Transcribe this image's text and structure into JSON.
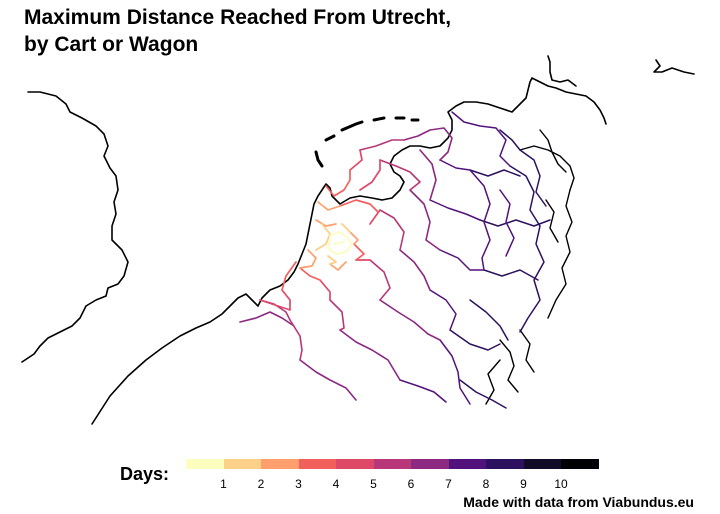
{
  "title": {
    "line1": "Maximum Distance Reached From Utrecht,",
    "line2": "by Cart or Wagon"
  },
  "legend": {
    "title": "Days:",
    "labels": [
      "1",
      "2",
      "3",
      "4",
      "5",
      "6",
      "7",
      "8",
      "9",
      "10"
    ],
    "colors": [
      "#fcfdbf",
      "#fdd08a",
      "#fe9f6d",
      "#f1605d",
      "#de4968",
      "#b73779",
      "#8c2981",
      "#51127c",
      "#2c115f",
      "#110b27",
      "#000004"
    ]
  },
  "caption": "Made with data from Viabundus.eu",
  "style": {
    "coastline_color": "#000000",
    "background": "#ffffff"
  }
}
